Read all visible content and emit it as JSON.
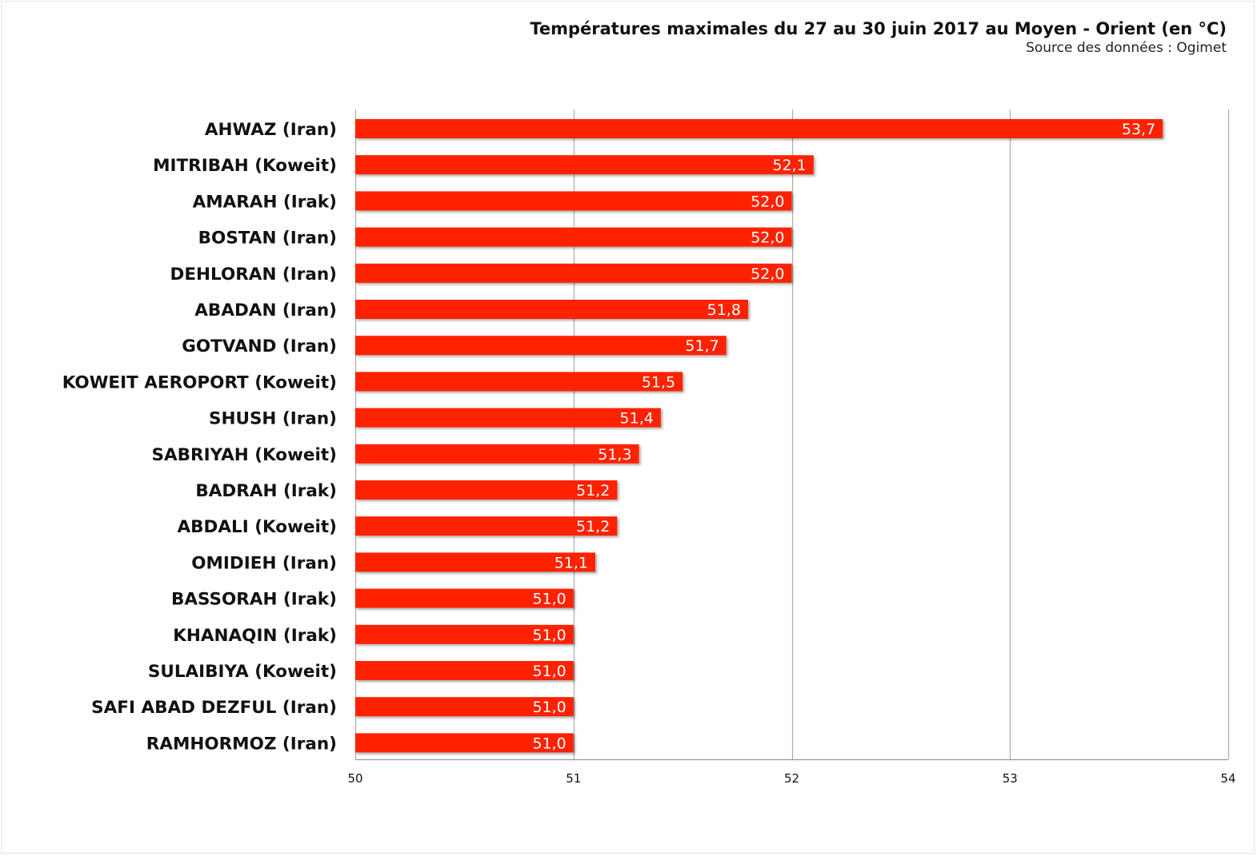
{
  "header": {
    "title": "Températures maximales du 27 au 30 juin 2017 au Moyen - Orient (en °C)",
    "subtitle": "Source des données : Ogimet"
  },
  "colors": {
    "bar": "#ff2200",
    "grid": "#aaaaaa",
    "axis": "#999999"
  },
  "chart_data": {
    "type": "bar",
    "orientation": "horizontal",
    "title": "Températures maximales du 27 au 30 juin 2017 au Moyen - Orient (en °C)",
    "subtitle": "Source des données : Ogimet",
    "xlabel": "",
    "ylabel": "",
    "xlim": [
      50,
      54
    ],
    "ticks": [
      50,
      51,
      52,
      53,
      54
    ],
    "tick_labels": [
      "50",
      "51",
      "52",
      "53",
      "54"
    ],
    "grid": true,
    "categories": [
      "AHWAZ (Iran)",
      "MITRIBAH (Koweit)",
      "AMARAH (Irak)",
      "BOSTAN (Iran)",
      "DEHLORAN (Iran)",
      "ABADAN (Iran)",
      "GOTVAND (Iran)",
      "KOWEIT AEROPORT (Koweit)",
      "SHUSH (Iran)",
      "SABRIYAH (Koweit)",
      "BADRAH (Irak)",
      "ABDALI (Koweit)",
      "OMIDIEH (Iran)",
      "BASSORAH (Irak)",
      "KHANAQIN (Irak)",
      "SULAIBIYA (Koweit)",
      "SAFI ABAD DEZFUL (Iran)",
      "RAMHORMOZ (Iran)"
    ],
    "values": [
      53.7,
      52.1,
      52.0,
      52.0,
      52.0,
      51.8,
      51.7,
      51.5,
      51.4,
      51.3,
      51.2,
      51.2,
      51.1,
      51.0,
      51.0,
      51.0,
      51.0,
      51.0
    ],
    "value_labels": [
      "53,7",
      "52,1",
      "52,0",
      "52,0",
      "52,0",
      "51,8",
      "51,7",
      "51,5",
      "51,4",
      "51,3",
      "51,2",
      "51,2",
      "51,1",
      "51,0",
      "51,0",
      "51,0",
      "51,0",
      "51,0"
    ]
  }
}
